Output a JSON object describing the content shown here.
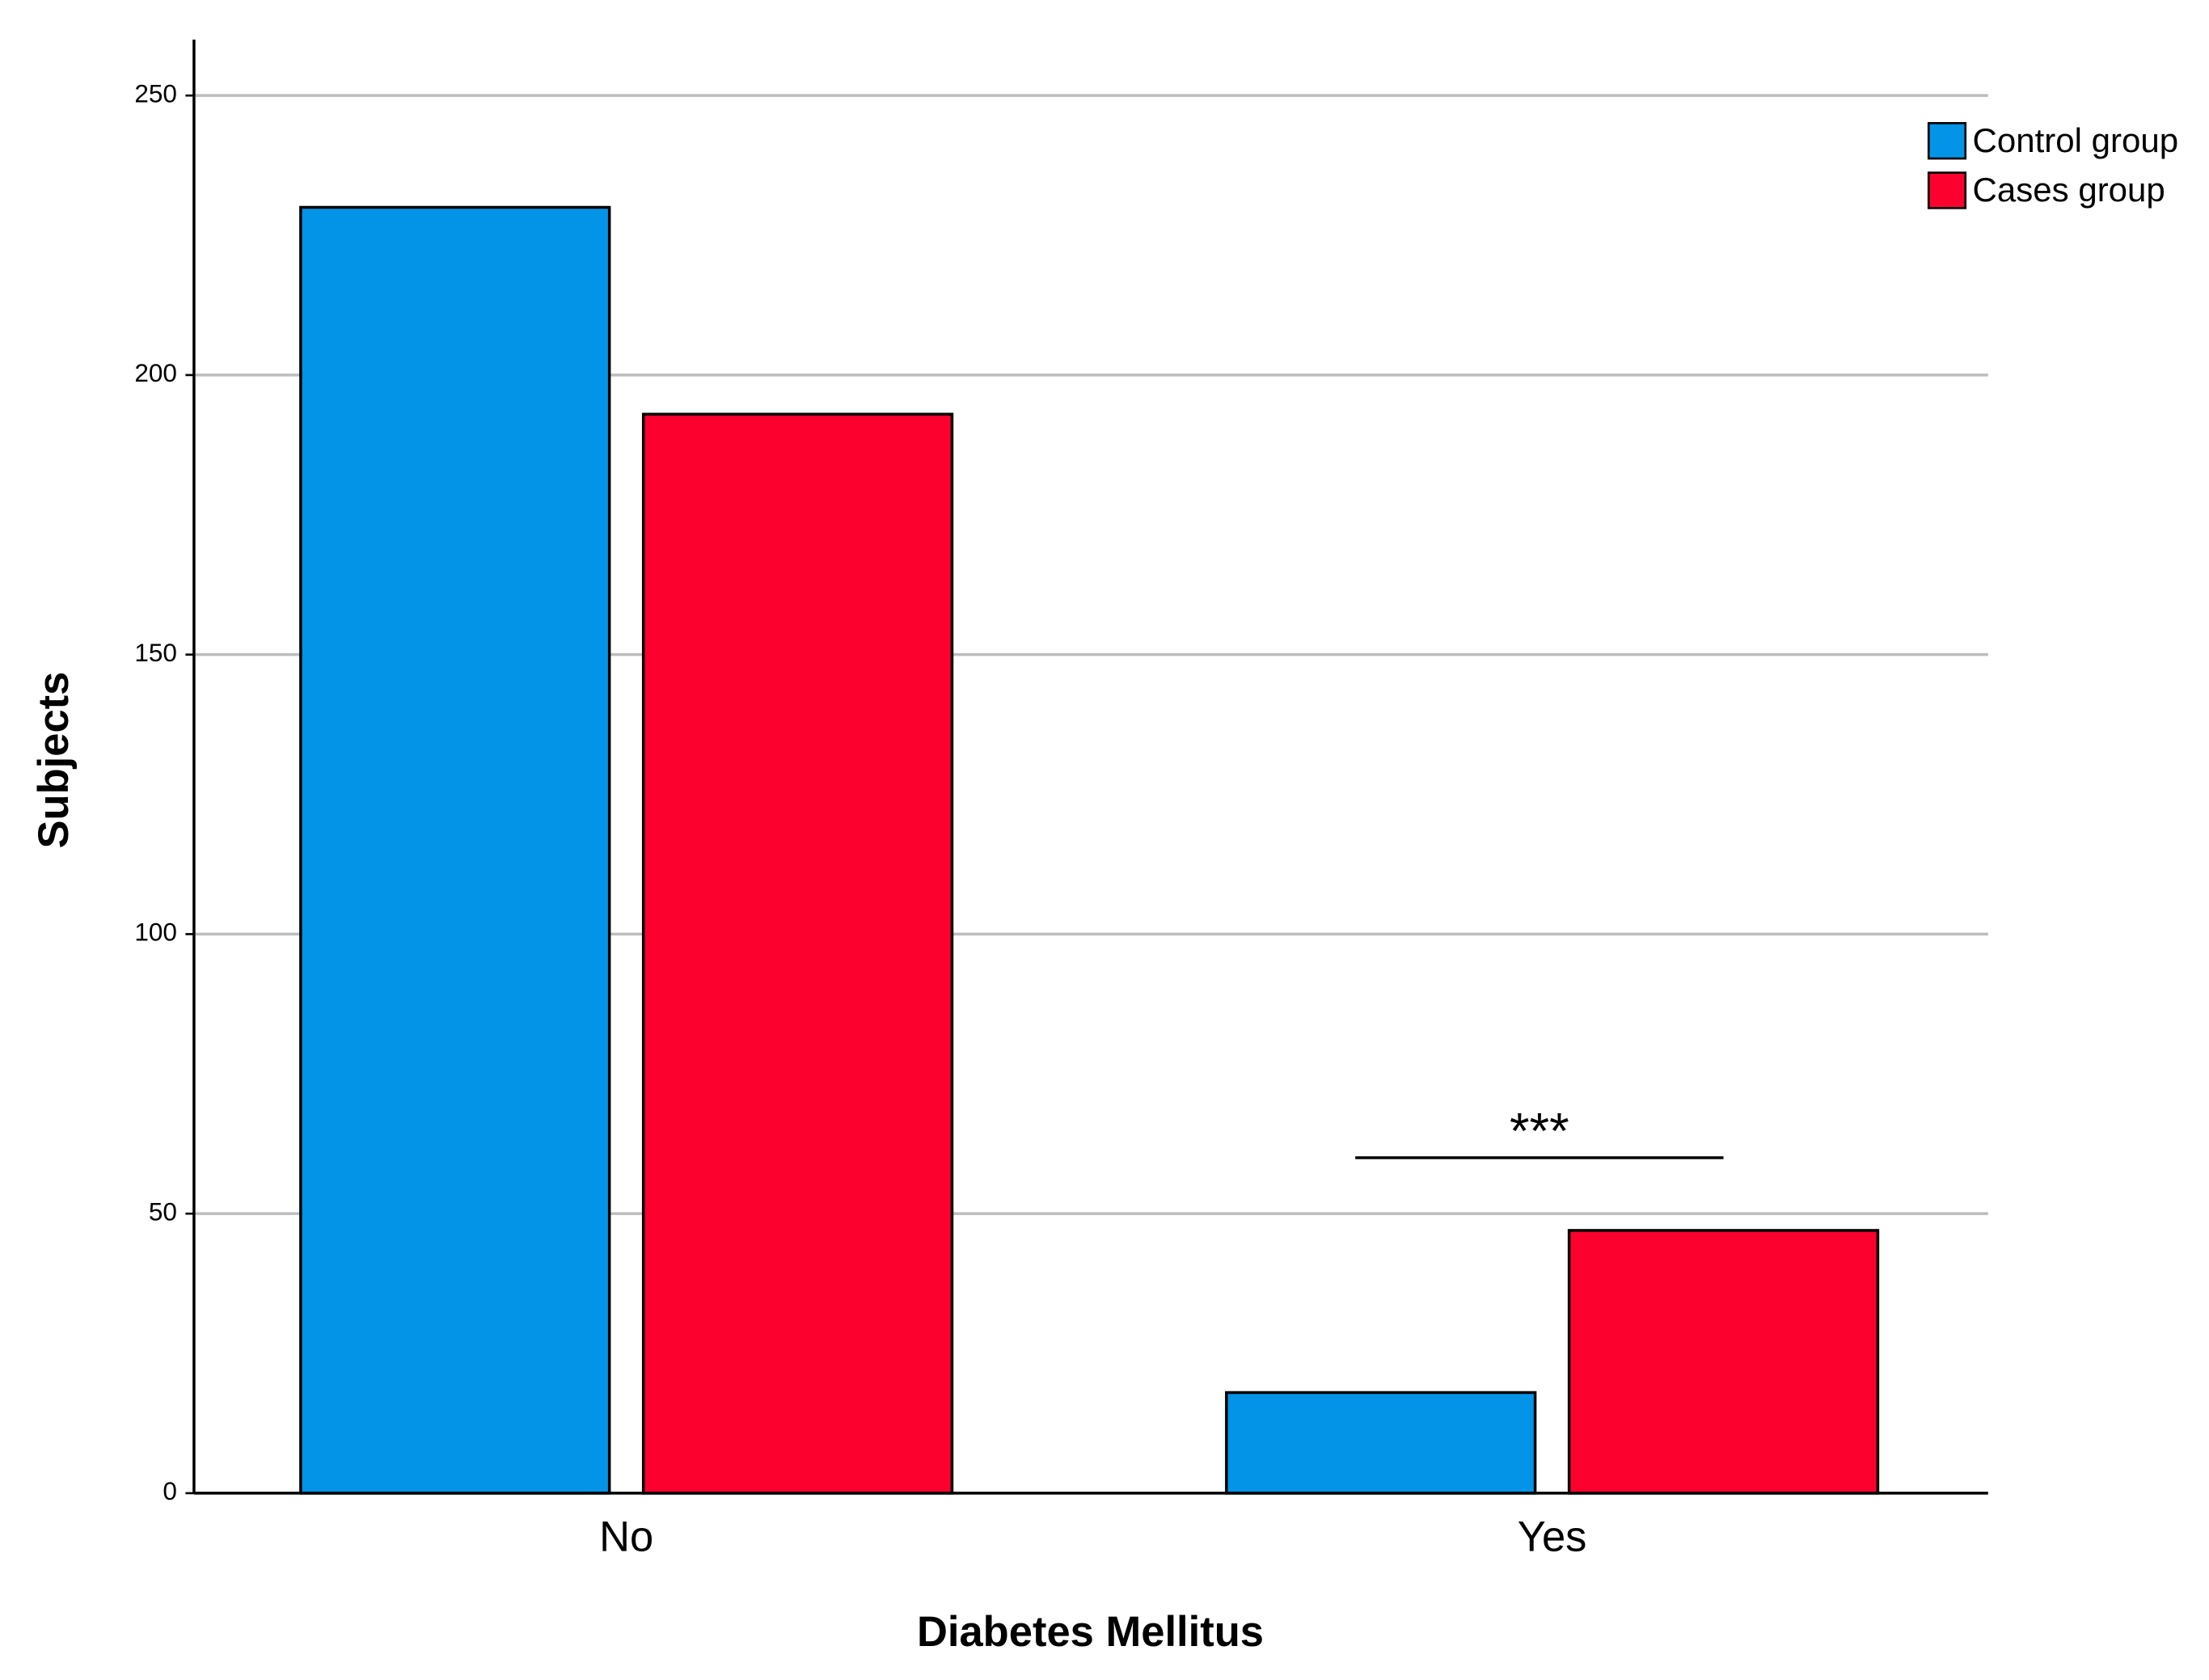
{
  "chart_data": {
    "type": "bar",
    "x_label": "Diabetes Mellitus",
    "y_label": "Subjects",
    "categories": [
      "No",
      "Yes"
    ],
    "series": [
      {
        "name": "Control group",
        "color": "#0394e8",
        "values": [
          230,
          18
        ]
      },
      {
        "name": "Cases group",
        "color": "#fc002e",
        "values": [
          193,
          47
        ]
      }
    ],
    "ylim": [
      0,
      260
    ],
    "yticks": [
      0,
      50,
      100,
      150,
      200,
      250
    ],
    "grid": true,
    "legend": "top-right",
    "annotations": [
      {
        "text": "***"
      }
    ]
  }
}
